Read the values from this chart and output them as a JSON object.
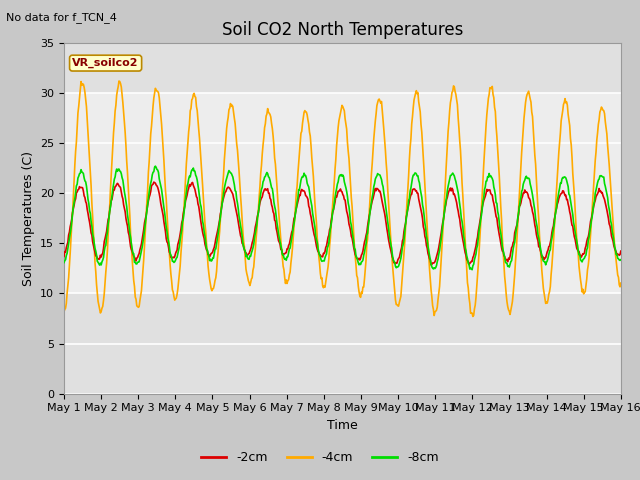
{
  "title": "Soil CO2 North Temperatures",
  "no_data_text": "No data for f_TCN_4",
  "xlabel": "Time",
  "ylabel": "Soil Temperatures (C)",
  "ylim": [
    0,
    35
  ],
  "yticks": [
    0,
    5,
    10,
    15,
    20,
    25,
    30,
    35
  ],
  "x_tick_labels": [
    "May 1",
    "May 2",
    "May 3",
    "May 4",
    "May 5",
    "May 6",
    "May 7",
    "May 8",
    "May 9",
    "May 10",
    "May 11",
    "May 12",
    "May 13",
    "May 14",
    "May 15",
    "May 16"
  ],
  "legend_entries": [
    "-2cm",
    "-4cm",
    "-8cm"
  ],
  "colors": {
    "neg2cm": "#dd0000",
    "neg4cm": "#ffaa00",
    "neg8cm": "#00dd00"
  },
  "line_width": 1.2,
  "band_ylim": [
    10,
    30
  ],
  "annotation_text": "VR_soilco2",
  "fig_bg": "#c8c8c8",
  "plot_bg": "#e0e0e0",
  "white_band_alpha": 1.0,
  "title_fontsize": 12,
  "label_fontsize": 9,
  "tick_fontsize": 8
}
